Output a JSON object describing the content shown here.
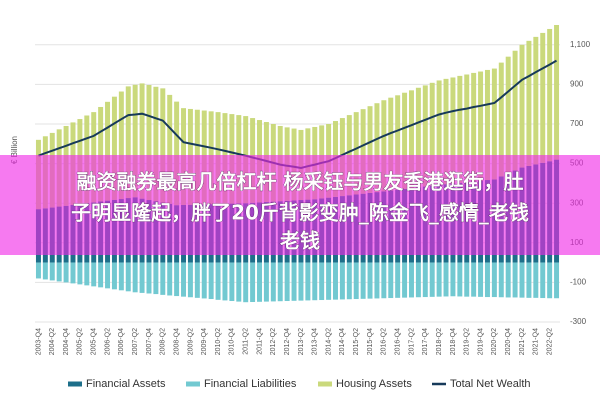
{
  "chart_data": {
    "type": "stacked-bar-line",
    "ylabel": "€ Billion",
    "ylim": [
      -300,
      1200
    ],
    "yticks": [
      -300,
      -100,
      100,
      300,
      500,
      700,
      900,
      {
        "value": 1100,
        "label": "1,100"
      }
    ],
    "grid": true,
    "categories": [
      "2003-Q4",
      null,
      "2004-Q2",
      null,
      "2004-Q4",
      null,
      "2005-Q2",
      null,
      "2005-Q4",
      null,
      "2006-Q2",
      null,
      "2006-Q4",
      null,
      "2007-Q2",
      null,
      "2007-Q4",
      null,
      "2008-Q2",
      null,
      "2008-Q4",
      null,
      "2009-Q2",
      null,
      "2009-Q4",
      null,
      "2010-Q2",
      null,
      "2010-Q4",
      null,
      "2011-Q2",
      null,
      "2011-Q4",
      null,
      "2012-Q2",
      null,
      "2012-Q4",
      null,
      "2013-Q2",
      null,
      "2013-Q4",
      null,
      "2014-Q2",
      null,
      "2014-Q4",
      null,
      "2015-Q2",
      null,
      "2015-Q4",
      null,
      "2016-Q2",
      null,
      "2016-Q4",
      null,
      "2017-Q2",
      null,
      "2017-Q4",
      null,
      "2018-Q2",
      null,
      "2018-Q4",
      null,
      "2019-Q2",
      null,
      "2019-Q4",
      null,
      "2020-Q2",
      null,
      "2020-Q4",
      null,
      "2021-Q2",
      null,
      "2021-Q4",
      null,
      "2022-Q2",
      null
    ],
    "series": [
      {
        "name": "Financial Assets",
        "color": "#1d6f8a",
        "kind": "bar",
        "values": [
          270,
          274,
          278,
          283,
          287,
          291,
          296,
          300,
          304,
          309,
          313,
          317,
          321,
          326,
          330,
          323,
          316,
          310,
          303,
          297,
          290,
          291,
          292,
          293,
          294,
          295,
          296,
          297,
          298,
          299,
          300,
          302,
          304,
          306,
          308,
          310,
          312,
          314,
          316,
          318,
          320,
          324,
          328,
          332,
          336,
          340,
          344,
          348,
          352,
          356,
          360,
          364,
          368,
          372,
          376,
          380,
          384,
          388,
          392,
          396,
          400,
          403,
          407,
          410,
          413,
          417,
          420,
          435,
          450,
          465,
          480,
          488,
          496,
          504,
          512,
          520
        ]
      },
      {
        "name": "Financial Liabilities",
        "color": "#72c9d1",
        "kind": "bar",
        "values": [
          -80,
          -85,
          -90,
          -95,
          -100,
          -105,
          -110,
          -115,
          -120,
          -125,
          -130,
          -135,
          -140,
          -145,
          -150,
          -153,
          -156,
          -159,
          -163,
          -166,
          -169,
          -172,
          -175,
          -178,
          -181,
          -184,
          -188,
          -191,
          -194,
          -197,
          -200,
          -199,
          -198,
          -197,
          -196,
          -195,
          -194,
          -193,
          -192,
          -191,
          -190,
          -189,
          -188,
          -187,
          -186,
          -185,
          -184,
          -183,
          -182,
          -181,
          -180,
          -179,
          -178,
          -177,
          -176,
          -175,
          -174,
          -173,
          -172,
          -171,
          -170,
          -171,
          -172,
          -172,
          -173,
          -174,
          -174,
          -175,
          -176,
          -176,
          -177,
          -178,
          -178,
          -179,
          -180,
          -180
        ]
      },
      {
        "name": "Housing Assets",
        "color": "#cad97c",
        "kind": "bar",
        "values": [
          350,
          364,
          377,
          390,
          403,
          417,
          429,
          443,
          456,
          477,
          499,
          521,
          543,
          564,
          568,
          582,
          581,
          578,
          577,
          550,
          523,
          489,
          484,
          479,
          474,
          469,
          464,
          458,
          452,
          446,
          440,
          428,
          416,
          404,
          392,
          380,
          371,
          363,
          354,
          360,
          365,
          369,
          372,
          383,
          394,
          405,
          416,
          427,
          438,
          449,
          460,
          469,
          477,
          486,
          494,
          503,
          511,
          520,
          528,
          532,
          535,
          540,
          543,
          548,
          552,
          556,
          560,
          575,
          590,
          605,
          620,
          632,
          644,
          656,
          668,
          680
        ]
      },
      {
        "name": "Total Net Wealth",
        "color": "#173a5a",
        "kind": "line",
        "values": [
          540,
          553,
          565,
          578,
          590,
          603,
          615,
          628,
          640,
          661,
          682,
          703,
          724,
          745,
          748,
          752,
          741,
          729,
          717,
          681,
          644,
          608,
          601,
          594,
          587,
          580,
          572,
          564,
          556,
          548,
          540,
          531,
          522,
          513,
          504,
          495,
          489,
          484,
          478,
          487,
          495,
          504,
          512,
          528,
          544,
          560,
          576,
          592,
          608,
          624,
          640,
          654,
          667,
          681,
          694,
          708,
          721,
          735,
          748,
          757,
          765,
          772,
          778,
          786,
          792,
          799,
          806,
          835,
          864,
          894,
          923,
          942,
          962,
          981,
          1000,
          1020
        ]
      }
    ]
  },
  "overlay": {
    "lines": [
      "融资融券最高几倍杠杆 杨采钰与男友香港逛街，肚",
      "子明显隆起，胖了20斤背影变肿_陈金飞_感情_老钱",
      "老钱"
    ]
  }
}
